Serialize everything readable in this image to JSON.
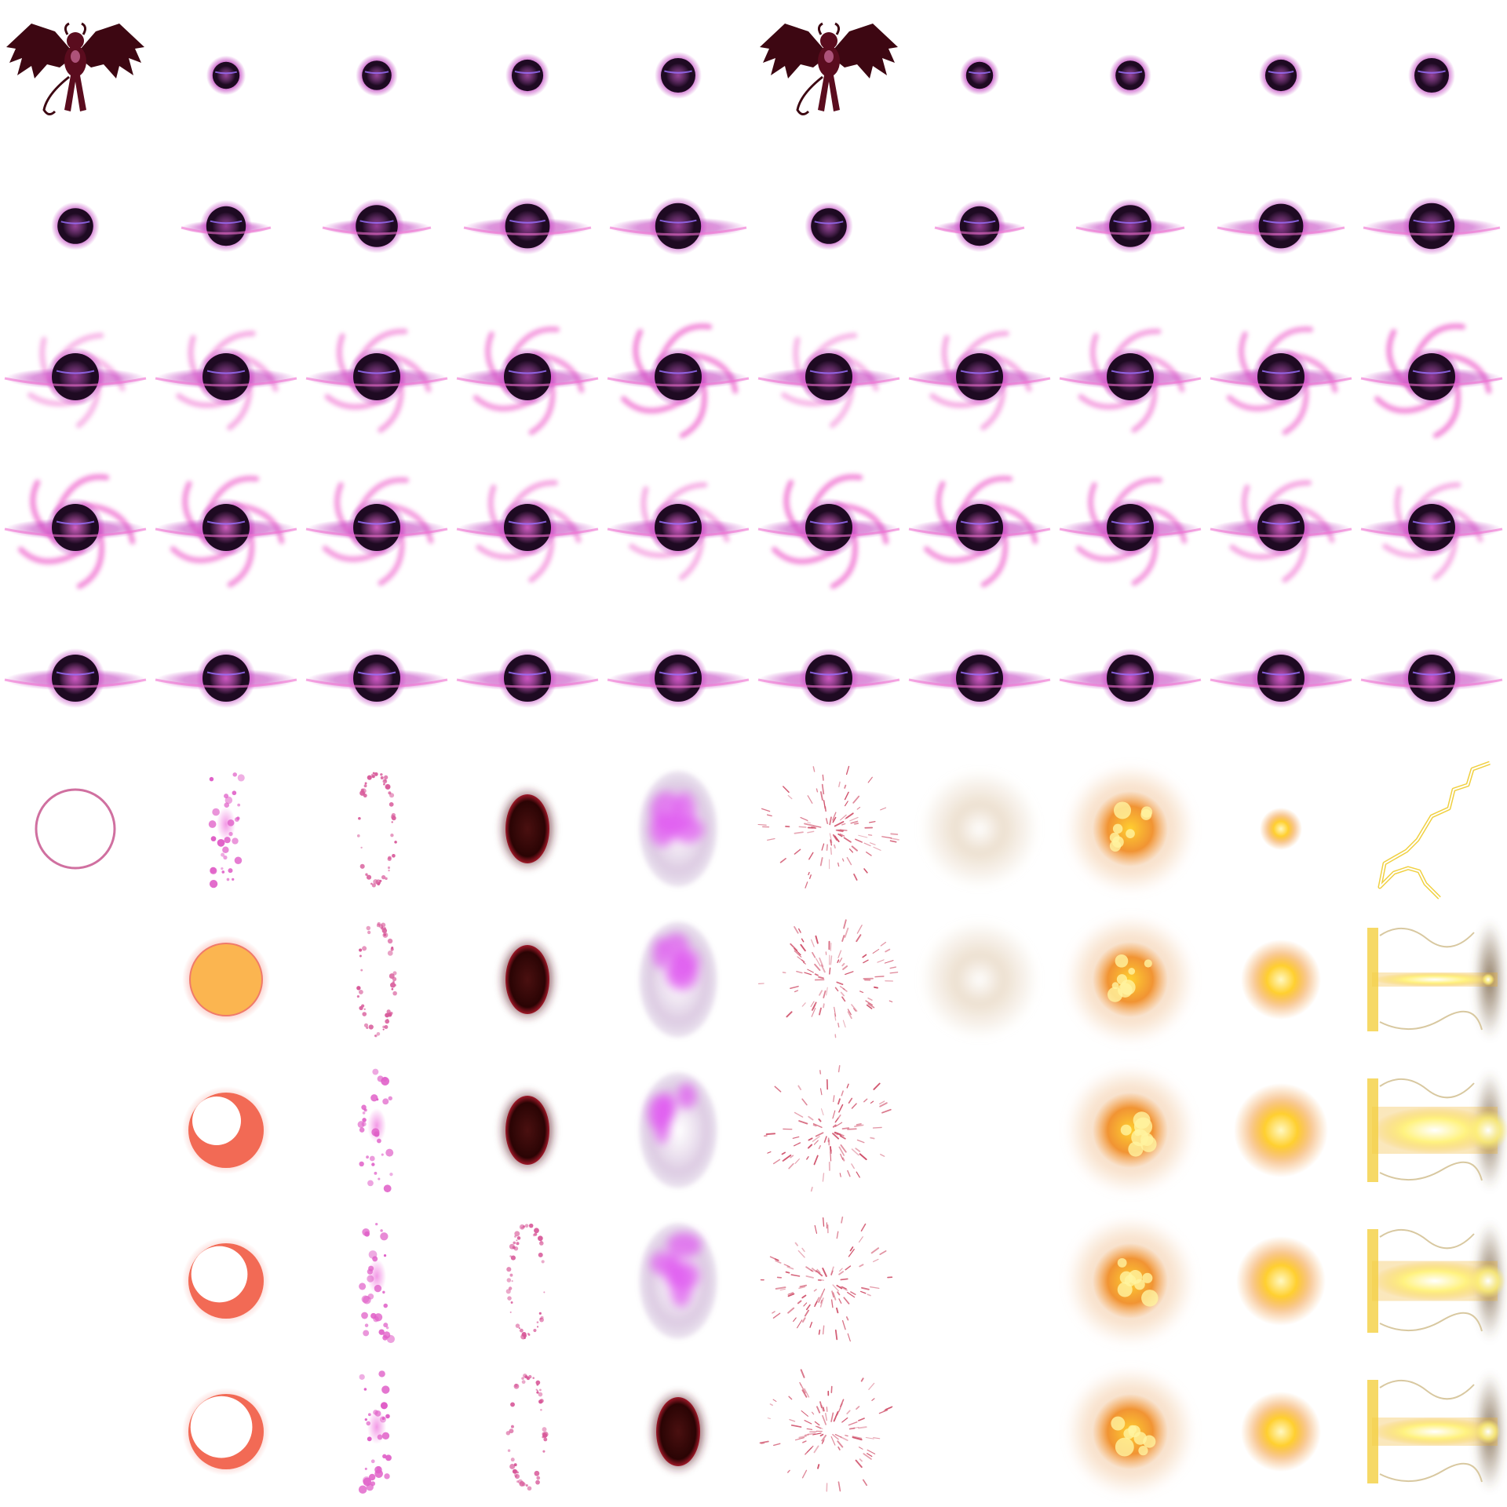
{
  "sheet": {
    "columns": 10,
    "rows": 10,
    "background": "#ffffff"
  },
  "palette": {
    "demon_body": "#5a0c1e",
    "demon_wing": "#3d0712",
    "orb_core": "#1e0a22",
    "orb_glow": "#c040c0",
    "ring_hot": "#f070d0",
    "halo_pink": "#d070a0",
    "sun_orange": "#fbb550",
    "moon_coral": "#f26a55",
    "void_red": "#2a0404",
    "blast_yellow": "#ffd030",
    "blast_orange": "#f08a20",
    "bolt_yellow": "#fff27a",
    "dust_beige": "#e8d8c4"
  },
  "sprites": [
    {
      "row": 0,
      "col": 0,
      "type": "demon"
    },
    {
      "row": 0,
      "col": 1,
      "type": "orb",
      "s": 0.2,
      "ring": 0,
      "swirl": 0
    },
    {
      "row": 0,
      "col": 2,
      "type": "orb",
      "s": 0.3,
      "ring": 0,
      "swirl": 0
    },
    {
      "row": 0,
      "col": 3,
      "type": "orb",
      "s": 0.38,
      "ring": 0,
      "swirl": 0
    },
    {
      "row": 0,
      "col": 4,
      "type": "orb",
      "s": 0.5,
      "ring": 0,
      "swirl": 0
    },
    {
      "row": 0,
      "col": 5,
      "type": "demon"
    },
    {
      "row": 0,
      "col": 6,
      "type": "orb",
      "s": 0.2,
      "ring": 0,
      "swirl": 0
    },
    {
      "row": 0,
      "col": 7,
      "type": "orb",
      "s": 0.3,
      "ring": 0,
      "swirl": 0
    },
    {
      "row": 0,
      "col": 8,
      "type": "orb",
      "s": 0.38,
      "ring": 0,
      "swirl": 0
    },
    {
      "row": 0,
      "col": 9,
      "type": "orb",
      "s": 0.5,
      "ring": 0,
      "swirl": 0
    },
    {
      "row": 1,
      "col": 0,
      "type": "orb",
      "s": 0.55,
      "ring": 0,
      "swirl": 0
    },
    {
      "row": 1,
      "col": 1,
      "type": "orb",
      "s": 0.7,
      "ring": 0.45,
      "swirl": 0
    },
    {
      "row": 1,
      "col": 2,
      "type": "orb",
      "s": 0.8,
      "ring": 0.65,
      "swirl": 0
    },
    {
      "row": 1,
      "col": 3,
      "type": "orb",
      "s": 0.9,
      "ring": 0.85,
      "swirl": 0
    },
    {
      "row": 1,
      "col": 4,
      "type": "orb",
      "s": 0.95,
      "ring": 0.95,
      "swirl": 0
    },
    {
      "row": 1,
      "col": 5,
      "type": "orb",
      "s": 0.55,
      "ring": 0,
      "swirl": 0
    },
    {
      "row": 1,
      "col": 6,
      "type": "orb",
      "s": 0.7,
      "ring": 0.45,
      "swirl": 0
    },
    {
      "row": 1,
      "col": 7,
      "type": "orb",
      "s": 0.8,
      "ring": 0.65,
      "swirl": 0
    },
    {
      "row": 1,
      "col": 8,
      "type": "orb",
      "s": 0.9,
      "ring": 0.85,
      "swirl": 0
    },
    {
      "row": 1,
      "col": 9,
      "type": "orb",
      "s": 0.95,
      "ring": 0.95,
      "swirl": 0
    },
    {
      "row": 2,
      "col": 0,
      "type": "orb",
      "s": 1,
      "ring": 1,
      "swirl": 0.35
    },
    {
      "row": 2,
      "col": 1,
      "type": "orb",
      "s": 1,
      "ring": 1,
      "swirl": 0.5
    },
    {
      "row": 2,
      "col": 2,
      "type": "orb",
      "s": 1,
      "ring": 1,
      "swirl": 0.65
    },
    {
      "row": 2,
      "col": 3,
      "type": "orb",
      "s": 1,
      "ring": 1,
      "swirl": 0.8
    },
    {
      "row": 2,
      "col": 4,
      "type": "orb",
      "s": 1,
      "ring": 1,
      "swirl": 1.0
    },
    {
      "row": 2,
      "col": 5,
      "type": "orb",
      "s": 1,
      "ring": 1,
      "swirl": 0.35
    },
    {
      "row": 2,
      "col": 6,
      "type": "orb",
      "s": 1,
      "ring": 1,
      "swirl": 0.5
    },
    {
      "row": 2,
      "col": 7,
      "type": "orb",
      "s": 1,
      "ring": 1,
      "swirl": 0.65
    },
    {
      "row": 2,
      "col": 8,
      "type": "orb",
      "s": 1,
      "ring": 1,
      "swirl": 0.8
    },
    {
      "row": 2,
      "col": 9,
      "type": "orb",
      "s": 1,
      "ring": 1,
      "swirl": 1.0
    },
    {
      "row": 3,
      "col": 0,
      "type": "orb",
      "s": 1,
      "ring": 1,
      "swirl": 1.0,
      "pink": 0.9
    },
    {
      "row": 3,
      "col": 1,
      "type": "orb",
      "s": 1,
      "ring": 1,
      "swirl": 0.9,
      "pink": 0.9
    },
    {
      "row": 3,
      "col": 2,
      "type": "orb",
      "s": 1,
      "ring": 1,
      "swirl": 0.8,
      "pink": 0.8
    },
    {
      "row": 3,
      "col": 3,
      "type": "orb",
      "s": 1,
      "ring": 1,
      "swirl": 0.6,
      "pink": 0.6
    },
    {
      "row": 3,
      "col": 4,
      "type": "orb",
      "s": 1,
      "ring": 1,
      "swirl": 0.45,
      "pink": 0.5
    },
    {
      "row": 3,
      "col": 5,
      "type": "orb",
      "s": 1,
      "ring": 1,
      "swirl": 1.0,
      "pink": 0.9
    },
    {
      "row": 3,
      "col": 6,
      "type": "orb",
      "s": 1,
      "ring": 1,
      "swirl": 0.9,
      "pink": 0.9
    },
    {
      "row": 3,
      "col": 7,
      "type": "orb",
      "s": 1,
      "ring": 1,
      "swirl": 0.8,
      "pink": 0.8
    },
    {
      "row": 3,
      "col": 8,
      "type": "orb",
      "s": 1,
      "ring": 1,
      "swirl": 0.6,
      "pink": 0.6
    },
    {
      "row": 3,
      "col": 9,
      "type": "orb",
      "s": 1,
      "ring": 1,
      "swirl": 0.45,
      "pink": 0.5
    },
    {
      "row": 4,
      "col": 0,
      "type": "orb",
      "s": 1,
      "ring": 1,
      "swirl": 0,
      "pink": 0.4
    },
    {
      "row": 4,
      "col": 1,
      "type": "orb",
      "s": 1,
      "ring": 1,
      "swirl": 0,
      "pink": 0.35
    },
    {
      "row": 4,
      "col": 2,
      "type": "orb",
      "s": 1,
      "ring": 1,
      "swirl": 0,
      "pink": 0.25
    },
    {
      "row": 4,
      "col": 3,
      "type": "orb",
      "s": 1,
      "ring": 1,
      "swirl": 0,
      "pink": 0.2
    },
    {
      "row": 4,
      "col": 4,
      "type": "orb",
      "s": 1,
      "ring": 1,
      "swirl": 0,
      "pink": 0.1
    },
    {
      "row": 4,
      "col": 5,
      "type": "orb",
      "s": 1,
      "ring": 1,
      "swirl": 0,
      "pink": 0.4
    },
    {
      "row": 4,
      "col": 6,
      "type": "orb",
      "s": 1,
      "ring": 1,
      "swirl": 0,
      "pink": 0.35
    },
    {
      "row": 4,
      "col": 7,
      "type": "orb",
      "s": 1,
      "ring": 1,
      "swirl": 0,
      "pink": 0.25
    },
    {
      "row": 4,
      "col": 8,
      "type": "orb",
      "s": 1,
      "ring": 1,
      "swirl": 0,
      "pink": 0.2
    },
    {
      "row": 4,
      "col": 9,
      "type": "orb",
      "s": 1,
      "ring": 1,
      "swirl": 0,
      "pink": 0.1
    },
    {
      "row": 5,
      "col": 0,
      "type": "ring-outline"
    },
    {
      "row": 5,
      "col": 1,
      "type": "particles-cluster",
      "seed": 11
    },
    {
      "row": 5,
      "col": 2,
      "type": "particles-ring",
      "seed": 12
    },
    {
      "row": 5,
      "col": 3,
      "type": "void",
      "seed": 13
    },
    {
      "row": 5,
      "col": 4,
      "type": "pink-cloud",
      "seed": 14
    },
    {
      "row": 5,
      "col": 5,
      "type": "sparks",
      "seed": 15
    },
    {
      "row": 5,
      "col": 6,
      "type": "dust",
      "seed": 16
    },
    {
      "row": 5,
      "col": 7,
      "type": "explosion-big",
      "seed": 17
    },
    {
      "row": 5,
      "col": 8,
      "type": "explosion-small",
      "seed": 18,
      "s": 0.45
    },
    {
      "row": 5,
      "col": 9,
      "type": "lightning",
      "seed": 19
    },
    {
      "row": 6,
      "col": 1,
      "type": "sun-disc"
    },
    {
      "row": 6,
      "col": 2,
      "type": "particles-ring",
      "seed": 22
    },
    {
      "row": 6,
      "col": 3,
      "type": "void",
      "seed": 23
    },
    {
      "row": 6,
      "col": 4,
      "type": "pink-cloud",
      "seed": 24
    },
    {
      "row": 6,
      "col": 5,
      "type": "sparks",
      "seed": 25
    },
    {
      "row": 6,
      "col": 6,
      "type": "dust",
      "seed": 26
    },
    {
      "row": 6,
      "col": 7,
      "type": "explosion-big",
      "seed": 27
    },
    {
      "row": 6,
      "col": 8,
      "type": "explosion-small",
      "seed": 28,
      "s": 0.85
    },
    {
      "row": 6,
      "col": 9,
      "type": "beam",
      "seed": 29,
      "phase": 0.3
    },
    {
      "row": 7,
      "col": 1,
      "type": "crescent",
      "phase": 0.5
    },
    {
      "row": 7,
      "col": 2,
      "type": "particles-cluster",
      "seed": 32
    },
    {
      "row": 7,
      "col": 3,
      "type": "void",
      "seed": 33
    },
    {
      "row": 7,
      "col": 4,
      "type": "pink-cloud",
      "seed": 34
    },
    {
      "row": 7,
      "col": 5,
      "type": "sparks",
      "seed": 35
    },
    {
      "row": 7,
      "col": 7,
      "type": "explosion-big",
      "seed": 37
    },
    {
      "row": 7,
      "col": 8,
      "type": "explosion-small",
      "seed": 38,
      "s": 1
    },
    {
      "row": 7,
      "col": 9,
      "type": "beam",
      "seed": 39,
      "phase": 1
    },
    {
      "row": 8,
      "col": 1,
      "type": "crescent",
      "phase": 0.72
    },
    {
      "row": 8,
      "col": 2,
      "type": "particles-cluster",
      "seed": 42
    },
    {
      "row": 8,
      "col": 3,
      "type": "particles-ring",
      "seed": 43
    },
    {
      "row": 8,
      "col": 4,
      "type": "pink-cloud",
      "seed": 44
    },
    {
      "row": 8,
      "col": 5,
      "type": "sparks",
      "seed": 45
    },
    {
      "row": 8,
      "col": 7,
      "type": "explosion-big",
      "seed": 47
    },
    {
      "row": 8,
      "col": 8,
      "type": "explosion-small",
      "seed": 48,
      "s": 0.95
    },
    {
      "row": 8,
      "col": 9,
      "type": "beam",
      "seed": 49,
      "phase": 0.85
    },
    {
      "row": 9,
      "col": 1,
      "type": "crescent",
      "phase": 0.88
    },
    {
      "row": 9,
      "col": 2,
      "type": "particles-cluster",
      "seed": 52
    },
    {
      "row": 9,
      "col": 3,
      "type": "particles-ring",
      "seed": 53
    },
    {
      "row": 9,
      "col": 4,
      "type": "void",
      "seed": 54
    },
    {
      "row": 9,
      "col": 5,
      "type": "sparks",
      "seed": 55
    },
    {
      "row": 9,
      "col": 7,
      "type": "explosion-big",
      "seed": 57
    },
    {
      "row": 9,
      "col": 8,
      "type": "explosion-small",
      "seed": 58,
      "s": 0.85
    },
    {
      "row": 9,
      "col": 9,
      "type": "beam",
      "seed": 59,
      "phase": 0.6
    }
  ]
}
